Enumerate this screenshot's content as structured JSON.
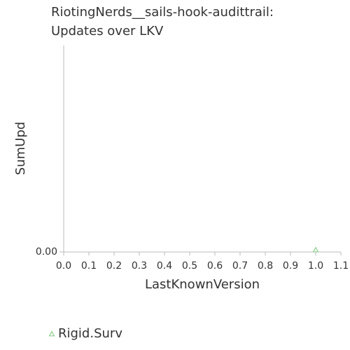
{
  "chart_data": {
    "type": "scatter",
    "title": [
      "RiotingNerds__sails-hook-audittrail:",
      "Updates over LKV"
    ],
    "xlabel": "LastKnownVersion",
    "ylabel": "SumUpd",
    "series": [
      {
        "name": "Rigid.Surv",
        "color": "#8fce8f",
        "marker": "triangle",
        "x": [
          1.0
        ],
        "values": [
          0
        ]
      }
    ],
    "xlim": [
      0,
      1.1
    ],
    "xticks": [
      {
        "value": 0,
        "label": "0.0"
      },
      0.1,
      0.2,
      0.3,
      0.4,
      0.5,
      0.6,
      0.7,
      0.8,
      0.9,
      {
        "value": 1,
        "label": "1.0"
      },
      1.1
    ],
    "ylim": [
      0,
      1
    ],
    "yticks": [
      {
        "value": 0,
        "label": "0.00"
      }
    ],
    "legend": "bottom-left"
  }
}
